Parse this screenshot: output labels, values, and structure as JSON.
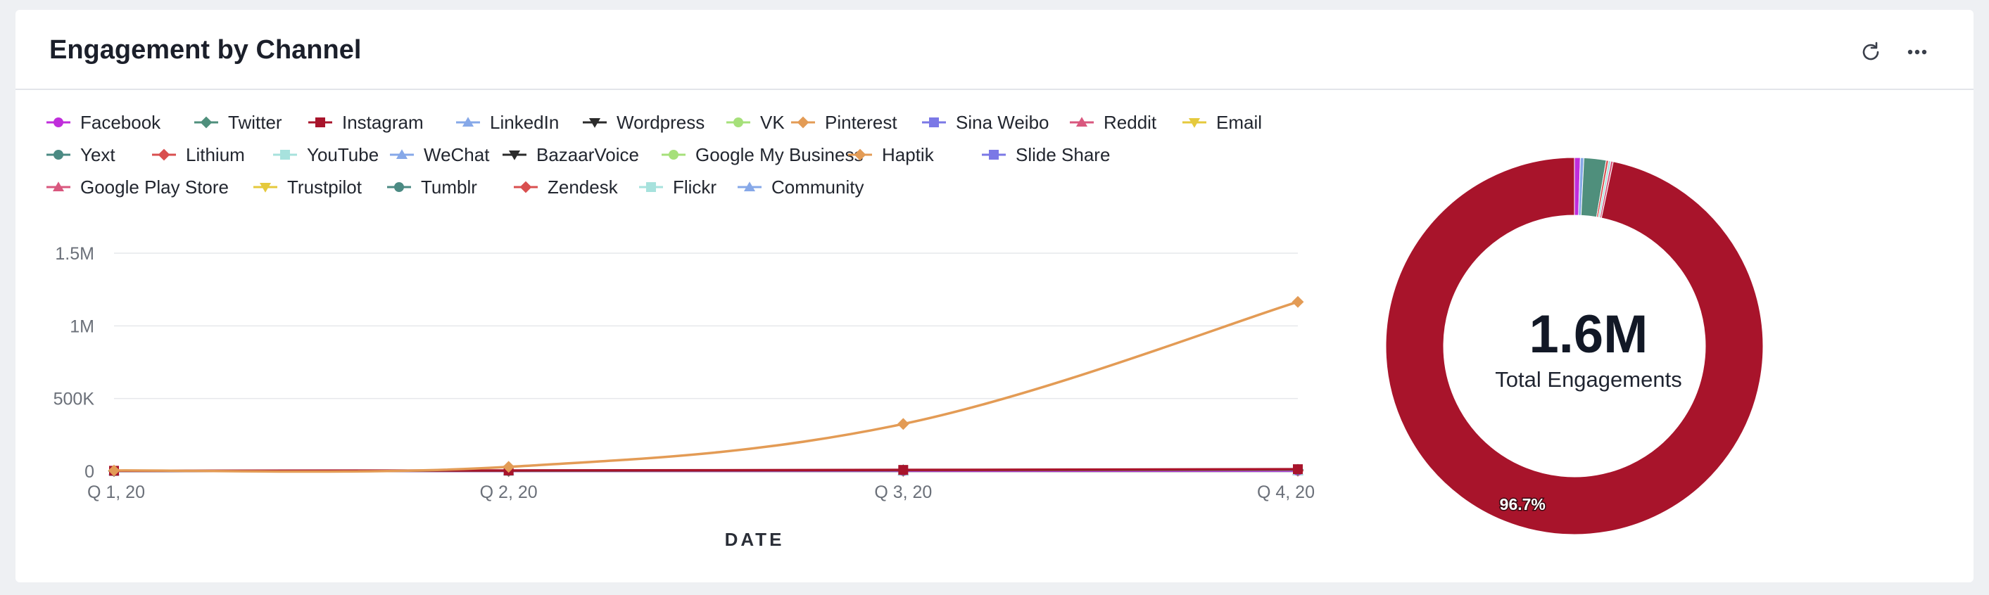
{
  "header": {
    "title": "Engagement by Channel"
  },
  "legend": [
    {
      "label": "Facebook",
      "color": "#c02ddb",
      "marker": "circle"
    },
    {
      "label": "Twitter",
      "color": "#4f8f7c",
      "marker": "diamond"
    },
    {
      "label": "Instagram",
      "color": "#a8142b",
      "marker": "square"
    },
    {
      "label": "LinkedIn",
      "color": "#86a8e8",
      "marker": "triangle"
    },
    {
      "label": "Wordpress",
      "color": "#2b2b2b",
      "marker": "triangle-down"
    },
    {
      "label": "VK",
      "color": "#a6e07a",
      "marker": "circle"
    },
    {
      "label": "Pinterest",
      "color": "#e39b55",
      "marker": "diamond"
    },
    {
      "label": "Sina Weibo",
      "color": "#7b78e6",
      "marker": "square"
    },
    {
      "label": "Reddit",
      "color": "#d9577e",
      "marker": "triangle"
    },
    {
      "label": "Email",
      "color": "#e5c93c",
      "marker": "triangle-down"
    },
    {
      "label": "Yext",
      "color": "#4b8a83",
      "marker": "circle"
    },
    {
      "label": "Lithium",
      "color": "#d94f4f",
      "marker": "diamond"
    },
    {
      "label": "YouTube",
      "color": "#a7e2dd",
      "marker": "square"
    },
    {
      "label": "WeChat",
      "color": "#86a8e8",
      "marker": "triangle"
    },
    {
      "label": "BazaarVoice",
      "color": "#2b2b2b",
      "marker": "triangle-down"
    },
    {
      "label": "Google My Business",
      "color": "#a6e07a",
      "marker": "circle"
    },
    {
      "label": "Haptik",
      "color": "#e39b55",
      "marker": "diamond"
    },
    {
      "label": "Slide Share",
      "color": "#7b78e6",
      "marker": "square"
    },
    {
      "label": "Google Play Store",
      "color": "#d9577e",
      "marker": "triangle"
    },
    {
      "label": "Trustpilot",
      "color": "#e5c93c",
      "marker": "triangle-down"
    },
    {
      "label": "Tumblr",
      "color": "#4b8a83",
      "marker": "circle"
    },
    {
      "label": "Zendesk",
      "color": "#d94f4f",
      "marker": "diamond"
    },
    {
      "label": "Flickr",
      "color": "#a7e2dd",
      "marker": "square"
    },
    {
      "label": "Community",
      "color": "#86a8e8",
      "marker": "triangle"
    }
  ],
  "chart_data": [
    {
      "type": "line",
      "categories": [
        "Q 1, 20",
        "Q 2, 20",
        "Q 3, 20",
        "Q 4, 20"
      ],
      "xlabel": "DATE",
      "ylabel": "",
      "ylim": [
        0,
        1500000
      ],
      "yticks": [
        {
          "value": 0,
          "label": "0"
        },
        {
          "value": 500000,
          "label": "500K"
        },
        {
          "value": 1000000,
          "label": "1M"
        },
        {
          "value": 1500000,
          "label": "1.5M"
        }
      ],
      "grid": true,
      "series": [
        {
          "name": "Pinterest",
          "color": "#e39b55",
          "marker": "diamond",
          "values": [
            5000,
            30000,
            325000,
            1165000
          ]
        },
        {
          "name": "Instagram",
          "color": "#a8142b",
          "marker": "square",
          "values": [
            3000,
            5000,
            9000,
            14000
          ]
        },
        {
          "name": "Twitter",
          "color": "#4f8f7c",
          "marker": "diamond",
          "values": [
            2000,
            3000,
            7000,
            10000
          ]
        },
        {
          "name": "Facebook",
          "color": "#c02ddb",
          "marker": "circle",
          "values": [
            1000,
            2000,
            3000,
            4000
          ]
        },
        {
          "name": "YouTube",
          "color": "#a7e2dd",
          "marker": "square",
          "values": [
            1000,
            2000,
            3000,
            4000
          ]
        },
        {
          "name": "Yext",
          "color": "#4b8a83",
          "marker": "circle",
          "values": [
            1000,
            2000,
            2000,
            3000
          ]
        },
        {
          "name": "Lithium",
          "color": "#d94f4f",
          "marker": "diamond",
          "values": [
            1000,
            1000,
            2000,
            3000
          ]
        },
        {
          "name": "LinkedIn",
          "color": "#86a8e8",
          "marker": "triangle",
          "values": [
            1000,
            1000,
            1000,
            2000
          ]
        }
      ]
    },
    {
      "type": "pie",
      "center_value": "1.6M",
      "center_label": "Total Engagements",
      "slices": [
        {
          "name": "Facebook",
          "color": "#c02ddb",
          "value": 0.5
        },
        {
          "name": "LinkedIn",
          "color": "#86a8e8",
          "value": 0.3
        },
        {
          "name": "Twitter",
          "color": "#4f8f7c",
          "value": 1.9
        },
        {
          "name": "Lithium",
          "color": "#d94f4f",
          "value": 0.2
        },
        {
          "name": "YouTube",
          "color": "#a7e2dd",
          "value": 0.2
        },
        {
          "name": "Reddit",
          "color": "#d9577e",
          "value": 0.2
        },
        {
          "name": "Instagram",
          "color": "#a8142b",
          "value": 96.7,
          "label": "96.7%"
        }
      ]
    }
  ]
}
